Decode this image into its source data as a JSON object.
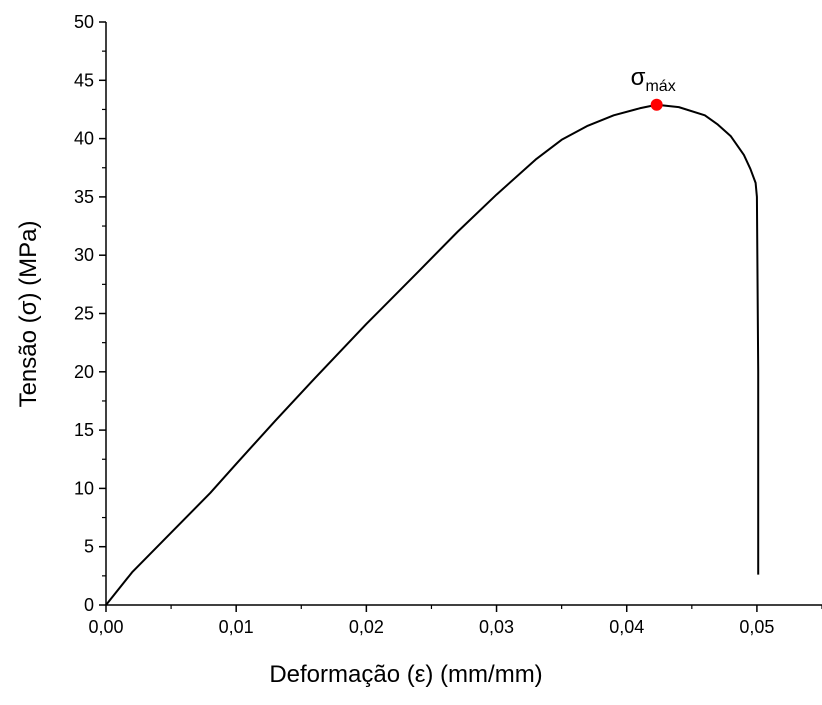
{
  "chart_data": {
    "type": "line",
    "title": "",
    "xlabel": "Deformação (ε) (mm/mm)",
    "ylabel": "Tensão (σ) (MPa)",
    "xlim": [
      0,
      0.055
    ],
    "ylim": [
      0,
      50
    ],
    "x_ticks": [
      0,
      0.01,
      0.02,
      0.03,
      0.04,
      0.05
    ],
    "x_tick_labels": [
      "0,00",
      "0,01",
      "0,02",
      "0,03",
      "0,04",
      "0,05"
    ],
    "y_ticks": [
      0,
      5,
      10,
      15,
      20,
      25,
      30,
      35,
      40,
      45,
      50
    ],
    "y_tick_labels": [
      "0",
      "5",
      "10",
      "15",
      "20",
      "25",
      "30",
      "35",
      "40",
      "45",
      "50"
    ],
    "grid": false,
    "series": [
      {
        "color": "#000000",
        "x": [
          0,
          0.002,
          0.005,
          0.008,
          0.01,
          0.013,
          0.016,
          0.02,
          0.024,
          0.027,
          0.03,
          0.033,
          0.035,
          0.037,
          0.039,
          0.041,
          0.0423,
          0.044,
          0.046,
          0.047,
          0.048,
          0.049,
          0.0495,
          0.0499,
          0.05,
          0.0501,
          0.0501
        ],
        "y": [
          0,
          2.8,
          6.2,
          9.6,
          12.1,
          15.8,
          19.4,
          24.1,
          28.6,
          32.0,
          35.2,
          38.2,
          39.9,
          41.1,
          42.0,
          42.6,
          42.9,
          42.7,
          42.0,
          41.2,
          40.2,
          38.6,
          37.4,
          36.2,
          35.0,
          20.0,
          2.6
        ]
      }
    ],
    "annotations": [
      {
        "label_main": "σ",
        "label_sub": "máx",
        "x": 0.0423,
        "y": 42.9,
        "marker_color": "#ff0000"
      }
    ]
  }
}
